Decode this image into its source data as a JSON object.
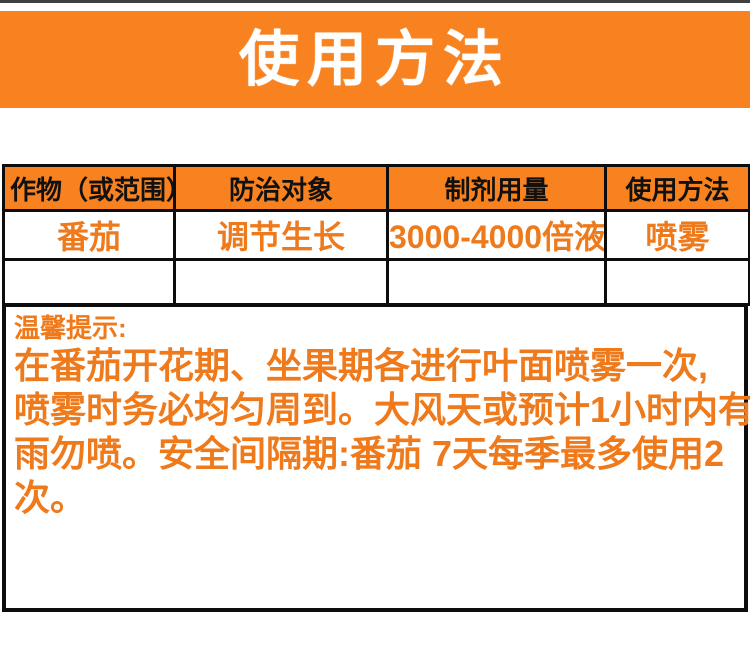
{
  "colors": {
    "accent_orange": "#F8821F",
    "text_orange": "#EF7A1C",
    "border_black": "#0d0d0d",
    "banner_text": "#ffffff",
    "top_strip": "#3f3f3f"
  },
  "banner": {
    "title": "使用方法"
  },
  "table": {
    "headers": [
      "作物（或范围）",
      "防治对象",
      "制剂用量",
      "使用方法"
    ],
    "rows": [
      [
        "番茄",
        "调节生长",
        "3000-4000倍液",
        "喷雾"
      ],
      [
        "",
        "",
        "",
        ""
      ]
    ]
  },
  "notes": {
    "heading": "温馨提示:",
    "lines": [
      "在番茄开花期、坐果期各进行叶面喷雾一次,",
      "喷雾时务必均匀周到。大风天或预计1小时内有",
      "雨勿喷。安全间隔期:番茄 7天每季最多使用2",
      "次。"
    ]
  }
}
